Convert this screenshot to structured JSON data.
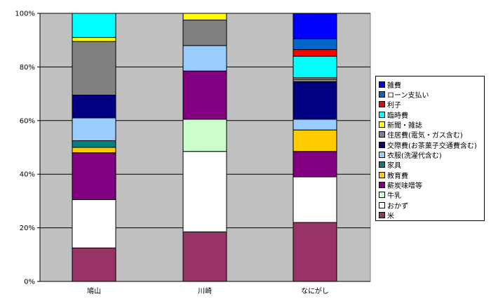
{
  "chart_data": {
    "type": "bar",
    "stacked": true,
    "percent": true,
    "categories": [
      "鳩山",
      "川崎",
      "なにがし"
    ],
    "yticks": [
      "0%",
      "20%",
      "40%",
      "60%",
      "80%",
      "100%"
    ],
    "ylim": [
      0,
      100
    ],
    "grid": true,
    "legend_position": "right",
    "series": [
      {
        "name": "米",
        "color": "#993366",
        "values": [
          12.5,
          18.5,
          22.0
        ]
      },
      {
        "name": "おかず",
        "color": "#ffffff",
        "values": [
          18.0,
          30.0,
          17.0
        ]
      },
      {
        "name": "牛乳",
        "color": "#ccffcc",
        "values": [
          0.0,
          12.0,
          0.0
        ]
      },
      {
        "name": "薪炭味噌等",
        "color": "#800080",
        "values": [
          17.5,
          18.0,
          9.5
        ]
      },
      {
        "name": "教育費",
        "color": "#ffcc00",
        "values": [
          2.0,
          0.0,
          8.0
        ]
      },
      {
        "name": "家具",
        "color": "#008080",
        "values": [
          2.5,
          0.0,
          0.0
        ]
      },
      {
        "name": "衣服(洗濯代含む)",
        "color": "#99ccff",
        "values": [
          8.5,
          9.5,
          4.0
        ]
      },
      {
        "name": "交際費(お茶菓子交通費含む)",
        "color": "#000080",
        "values": [
          8.5,
          0.0,
          14.0
        ]
      },
      {
        "name": "住居費(電気・ガス含む)",
        "color": "#808080",
        "values": [
          20.0,
          9.5,
          1.0
        ]
      },
      {
        "name": "新聞・雑誌",
        "color": "#ffff00",
        "values": [
          1.5,
          2.5,
          0.5
        ]
      },
      {
        "name": "臨時費",
        "color": "#00ffff",
        "values": [
          9.0,
          0.0,
          8.0
        ]
      },
      {
        "name": "利子",
        "color": "#ff0000",
        "values": [
          0.0,
          0.0,
          2.5
        ]
      },
      {
        "name": "ローン支払い",
        "color": "#0066cc",
        "values": [
          0.0,
          0.0,
          4.0
        ]
      },
      {
        "name": "雑費",
        "color": "#0000ff",
        "values": [
          0.0,
          0.0,
          9.5
        ]
      }
    ]
  },
  "colors": {
    "plot_background": "#c0c0c0",
    "gridline": "#000000",
    "bar_outline": "#000000"
  }
}
